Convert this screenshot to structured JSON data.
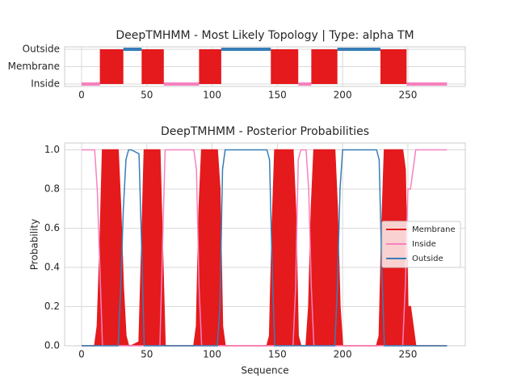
{
  "chart_data": [
    {
      "type": "topology",
      "title": "DeepTMHMM - Most Likely Topology | Type: alpha TM",
      "states": [
        {
          "name": "Inside",
          "color": "#f781bf"
        },
        {
          "name": "Membrane",
          "color": "#e41a1c"
        },
        {
          "name": "Outside",
          "color": "#377eb8"
        }
      ],
      "segments": [
        {
          "state": "Inside",
          "start": 0,
          "end": 14
        },
        {
          "state": "Membrane",
          "start": 14,
          "end": 32
        },
        {
          "state": "Outside",
          "start": 32,
          "end": 46
        },
        {
          "state": "Membrane",
          "start": 46,
          "end": 63
        },
        {
          "state": "Inside",
          "start": 63,
          "end": 90
        },
        {
          "state": "Membrane",
          "start": 90,
          "end": 107
        },
        {
          "state": "Outside",
          "start": 107,
          "end": 145
        },
        {
          "state": "Membrane",
          "start": 145,
          "end": 166
        },
        {
          "state": "Inside",
          "start": 166,
          "end": 176
        },
        {
          "state": "Membrane",
          "start": 176,
          "end": 196
        },
        {
          "state": "Outside",
          "start": 196,
          "end": 229
        },
        {
          "state": "Membrane",
          "start": 229,
          "end": 249
        },
        {
          "state": "Inside",
          "start": 249,
          "end": 280
        }
      ],
      "xlim": [
        -13,
        294
      ],
      "xticks": [
        0,
        50,
        100,
        150,
        200,
        250
      ],
      "grid": true
    },
    {
      "type": "line",
      "title": "DeepTMHMM - Posterior Probabilities",
      "x_label": "Sequence",
      "y_label": "Probability",
      "x": [
        0,
        10,
        12,
        14,
        16,
        28,
        30,
        32,
        34,
        36,
        38,
        44,
        46,
        48,
        60,
        62,
        64,
        86,
        88,
        90,
        92,
        104,
        106,
        108,
        110,
        142,
        144,
        146,
        148,
        162,
        164,
        166,
        168,
        172,
        174,
        176,
        178,
        194,
        196,
        198,
        200,
        202,
        226,
        228,
        230,
        232,
        246,
        248,
        250,
        252,
        254,
        256,
        280
      ],
      "series": [
        {
          "name": "Membrane",
          "color": "#e41a1c",
          "fill": true,
          "values": [
            0,
            0,
            0.1,
            0.5,
            1,
            1,
            0.7,
            0.3,
            0.05,
            0,
            0,
            0.02,
            0.5,
            1,
            1,
            0.5,
            0,
            0,
            0.1,
            0.7,
            1,
            1,
            0.8,
            0.1,
            0,
            0,
            0.05,
            0.6,
            1,
            1,
            0.7,
            0.05,
            0,
            0,
            0.2,
            0.7,
            1,
            1,
            0.7,
            0.2,
            0,
            0,
            0,
            0.05,
            0.6,
            1,
            1,
            0.9,
            0.2,
            0.2,
            0.1,
            0,
            0
          ]
        },
        {
          "name": "Inside",
          "color": "#f781bf",
          "fill": false,
          "values": [
            1,
            1,
            0.8,
            0.4,
            0,
            0,
            0,
            0,
            0,
            0,
            0,
            0,
            0,
            0,
            0,
            0.5,
            1,
            1,
            0.9,
            0.3,
            0,
            0,
            0,
            0,
            0,
            0,
            0,
            0,
            0,
            0,
            0.3,
            0.95,
            1,
            1,
            0.8,
            0.3,
            0,
            0,
            0,
            0,
            0,
            0,
            0,
            0,
            0,
            0,
            0,
            0.3,
            0.8,
            0.8,
            0.9,
            1,
            1
          ]
        },
        {
          "name": "Outside",
          "color": "#377eb8",
          "fill": false,
          "values": [
            0,
            0,
            0,
            0,
            0,
            0,
            0.3,
            0.7,
            0.95,
            1,
            1,
            0.98,
            0.5,
            0,
            0,
            0,
            0,
            0,
            0,
            0,
            0,
            0,
            0.2,
            0.9,
            1,
            1,
            0.95,
            0.4,
            0,
            0,
            0,
            0,
            0,
            0,
            0,
            0,
            0,
            0,
            0.3,
            0.8,
            1,
            1,
            1,
            0.95,
            0.4,
            0,
            0,
            0,
            0,
            0,
            0,
            0,
            0
          ]
        }
      ],
      "xlim": [
        -13,
        294
      ],
      "xticks": [
        0,
        50,
        100,
        150,
        200,
        250
      ],
      "ylim": [
        0,
        1.035
      ],
      "yticks": [
        {
          "value": 0,
          "label": "0.0"
        },
        {
          "value": 0.2,
          "label": "0.2"
        },
        {
          "value": 0.4,
          "label": "0.4"
        },
        {
          "value": 0.6,
          "label": "0.6"
        },
        {
          "value": 0.8,
          "label": "0.8"
        },
        {
          "value": 1,
          "label": "1.0"
        }
      ],
      "grid": true,
      "legend": "right"
    }
  ]
}
